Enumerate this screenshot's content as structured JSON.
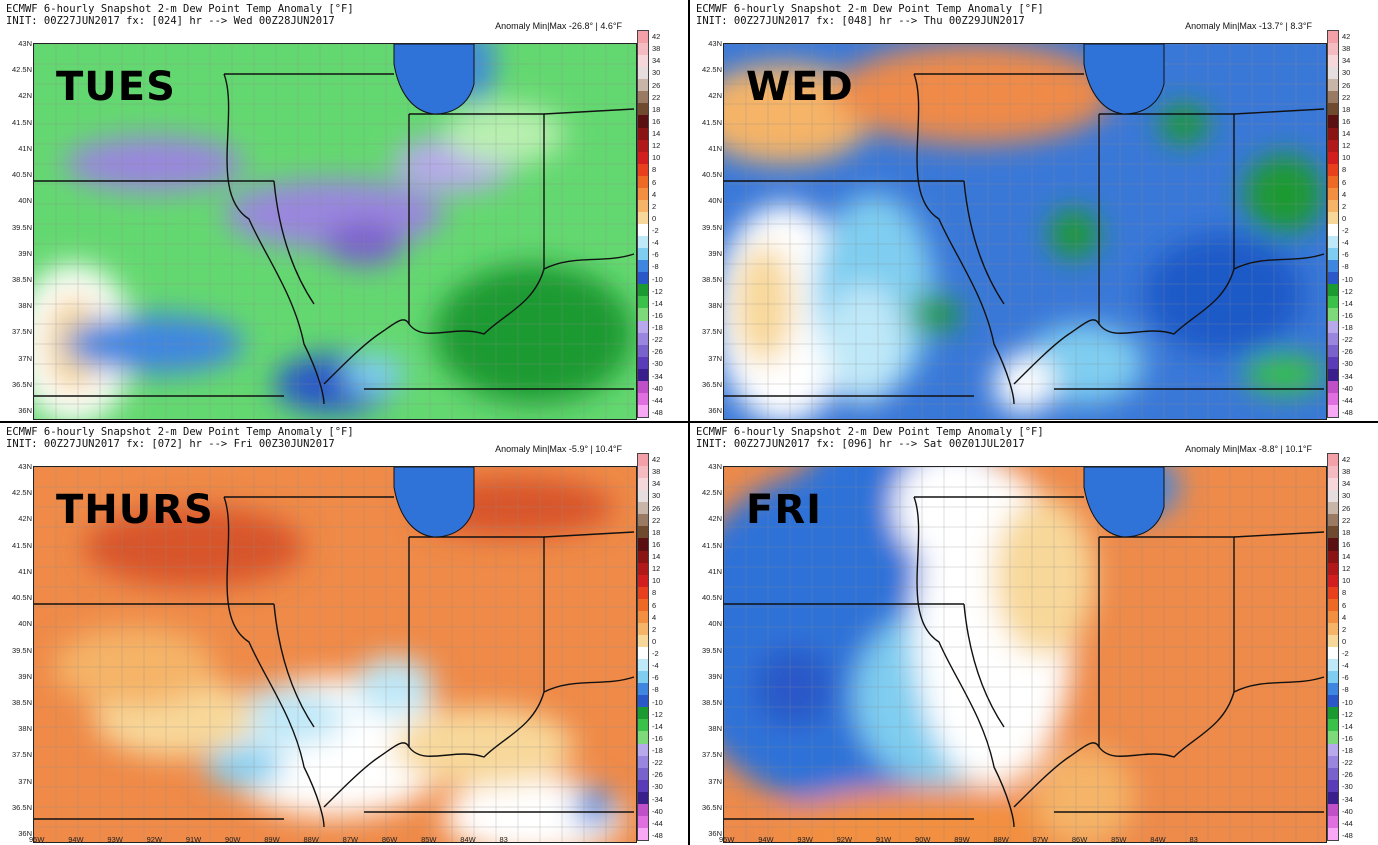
{
  "panels": [
    {
      "day": "TUES",
      "header_line1": "ECMWF 6-hourly Snapshot 2-m Dew Point Temp Anomaly [°F]",
      "header_line2": "INIT: 00Z27JUN2017 fx: [024] hr --> Wed 00Z28JUN2017",
      "minmax": "Anomaly Min|Max -26.8° | 4.6°F",
      "theme": "green",
      "show_lon": false
    },
    {
      "day": "WED",
      "header_line1": "ECMWF 6-hourly Snapshot 2-m Dew Point Temp Anomaly [°F]",
      "header_line2": "INIT: 00Z27JUN2017 fx: [048] hr --> Thu 00Z29JUN2017",
      "minmax": "Anomaly Min|Max -13.7° | 8.3°F",
      "theme": "blue",
      "show_lon": false
    },
    {
      "day": "THURS",
      "header_line1": "ECMWF 6-hourly Snapshot 2-m Dew Point Temp Anomaly [°F]",
      "header_line2": "INIT: 00Z27JUN2017 fx: [072] hr --> Fri 00Z30JUN2017",
      "minmax": "Anomaly Min|Max -5.9° | 10.4°F",
      "theme": "orange",
      "show_lon": true
    },
    {
      "day": "FRI",
      "header_line1": "ECMWF 6-hourly Snapshot 2-m Dew Point Temp Anomaly [°F]",
      "header_line2": "INIT: 00Z27JUN2017 fx: [096] hr --> Sat 00Z01JUL2017",
      "minmax": "Anomaly Min|Max -8.8° | 10.1°F",
      "theme": "split",
      "show_lon": true
    }
  ],
  "lat_labels": [
    "43N",
    "42.5N",
    "42N",
    "41.5N",
    "41N",
    "40.5N",
    "40N",
    "39.5N",
    "39N",
    "38.5N",
    "38N",
    "37.5N",
    "37N",
    "36.5N",
    "36N"
  ],
  "lon_labels": [
    "95W",
    "94W",
    "93W",
    "92W",
    "91W",
    "90W",
    "89W",
    "88W",
    "87W",
    "86W",
    "85W",
    "84W",
    "83"
  ],
  "colorbar_labels": [
    "42",
    "38",
    "34",
    "30",
    "26",
    "22",
    "18",
    "16",
    "14",
    "12",
    "10",
    "8",
    "6",
    "4",
    "2",
    "0",
    "-2",
    "-4",
    "-6",
    "-8",
    "-10",
    "-12",
    "-14",
    "-16",
    "-18",
    "-22",
    "-26",
    "-30",
    "-34",
    "-40",
    "-44",
    "-48"
  ],
  "colorbar_colors": [
    "#f3a0a8",
    "#f4bcc0",
    "#f7d8da",
    "#e6dede",
    "#c9b5a8",
    "#9b7a64",
    "#6f4a2f",
    "#5a1010",
    "#8a1414",
    "#b0181a",
    "#d21e1e",
    "#e8401c",
    "#ee6a24",
    "#f28f40",
    "#f5b468",
    "#f8d89a",
    "#ffffff",
    "#bfe8f8",
    "#7fcdf0",
    "#3f86e0",
    "#2a58c8",
    "#1a9a30",
    "#39c14a",
    "#7ed97a",
    "#b8a8ec",
    "#9a86de",
    "#7a62cc",
    "#5a3cb8",
    "#3a1e8c",
    "#c050c8",
    "#e070e0",
    "#f8a8f4"
  ],
  "theme_colors": {
    "green": "#64d870",
    "blue": "#3a78d8",
    "orange": "#ef8a48",
    "split_west": "#2f72d8",
    "split_east": "#ee8a4a"
  }
}
